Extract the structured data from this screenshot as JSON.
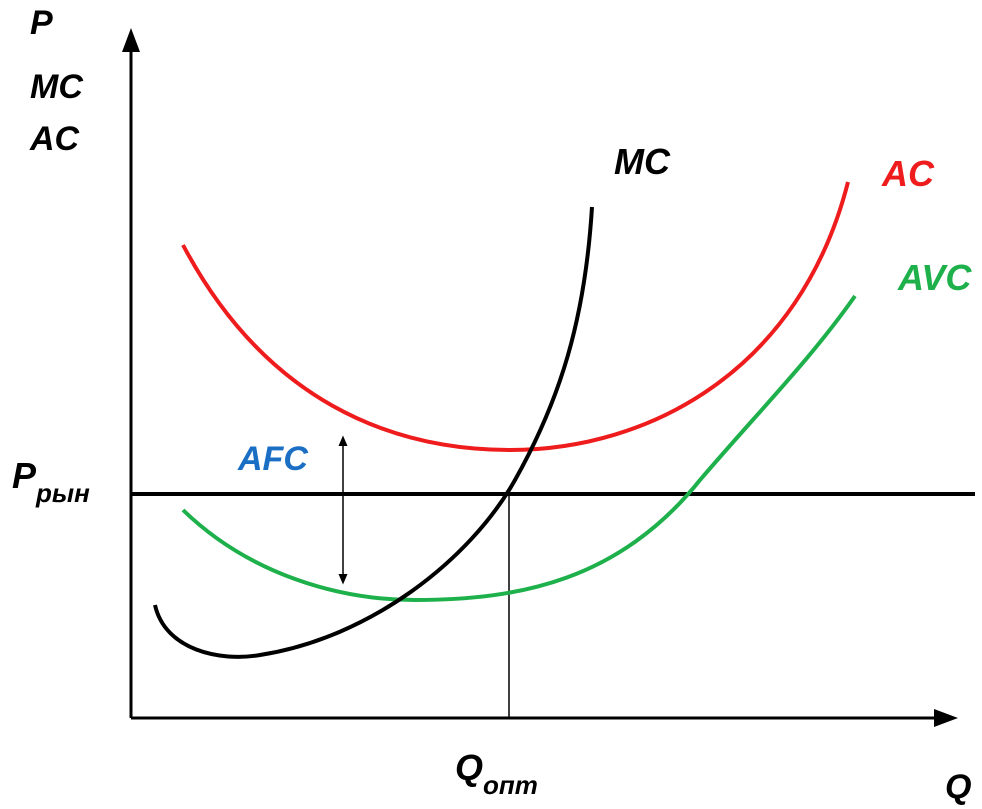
{
  "axes": {
    "y_label_lines": [
      "P",
      "MC",
      "AC"
    ],
    "x_label": "Q"
  },
  "curves": {
    "mc": {
      "label": "MC",
      "color": "#000000"
    },
    "ac": {
      "label": "AC",
      "color": "#ee1c1c"
    },
    "avc": {
      "label": "AVC",
      "color": "#1db04b"
    }
  },
  "price_line": {
    "label_main": "P",
    "label_sub": "рын"
  },
  "optimum": {
    "label_main": "Q",
    "label_sub": "опт"
  },
  "afc": {
    "label": "AFC",
    "color": "#1a6fc4"
  }
}
